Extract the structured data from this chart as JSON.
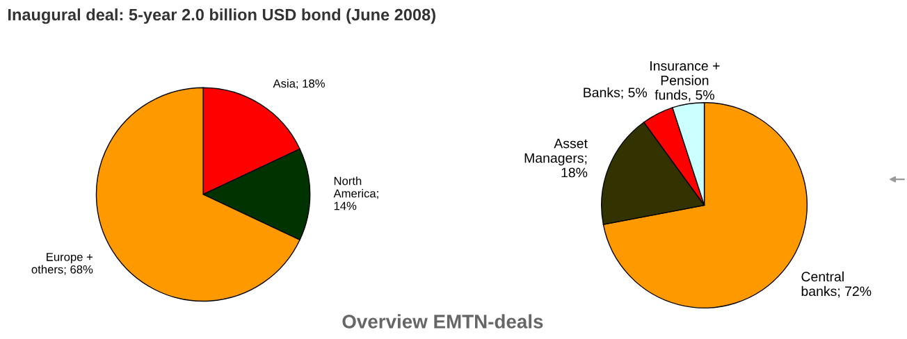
{
  "chart_data": [
    {
      "type": "pie",
      "title": "Inaugural deal: 5-year 2.0 billion USD bond (June 2008)",
      "categories": [
        "Asia; 18%",
        "North\nAmerica;\n14%",
        "Europe +\nothers; 68%"
      ],
      "values": [
        18,
        14,
        68
      ],
      "colors": [
        "#ff0000",
        "#003300",
        "#ff9900"
      ],
      "annotations": [
        "Overview EMTN-deals"
      ]
    },
    {
      "type": "pie",
      "categories": [
        "Central\nbanks; 72%",
        "Asset\nManagers;\n18%",
        "Banks; 5%",
        "Insurance +\nPension\nfunds, 5%"
      ],
      "values": [
        72,
        18,
        5,
        5
      ],
      "colors": [
        "#ff9900",
        "#333300",
        "#ff0000",
        "#ccffff"
      ]
    }
  ]
}
